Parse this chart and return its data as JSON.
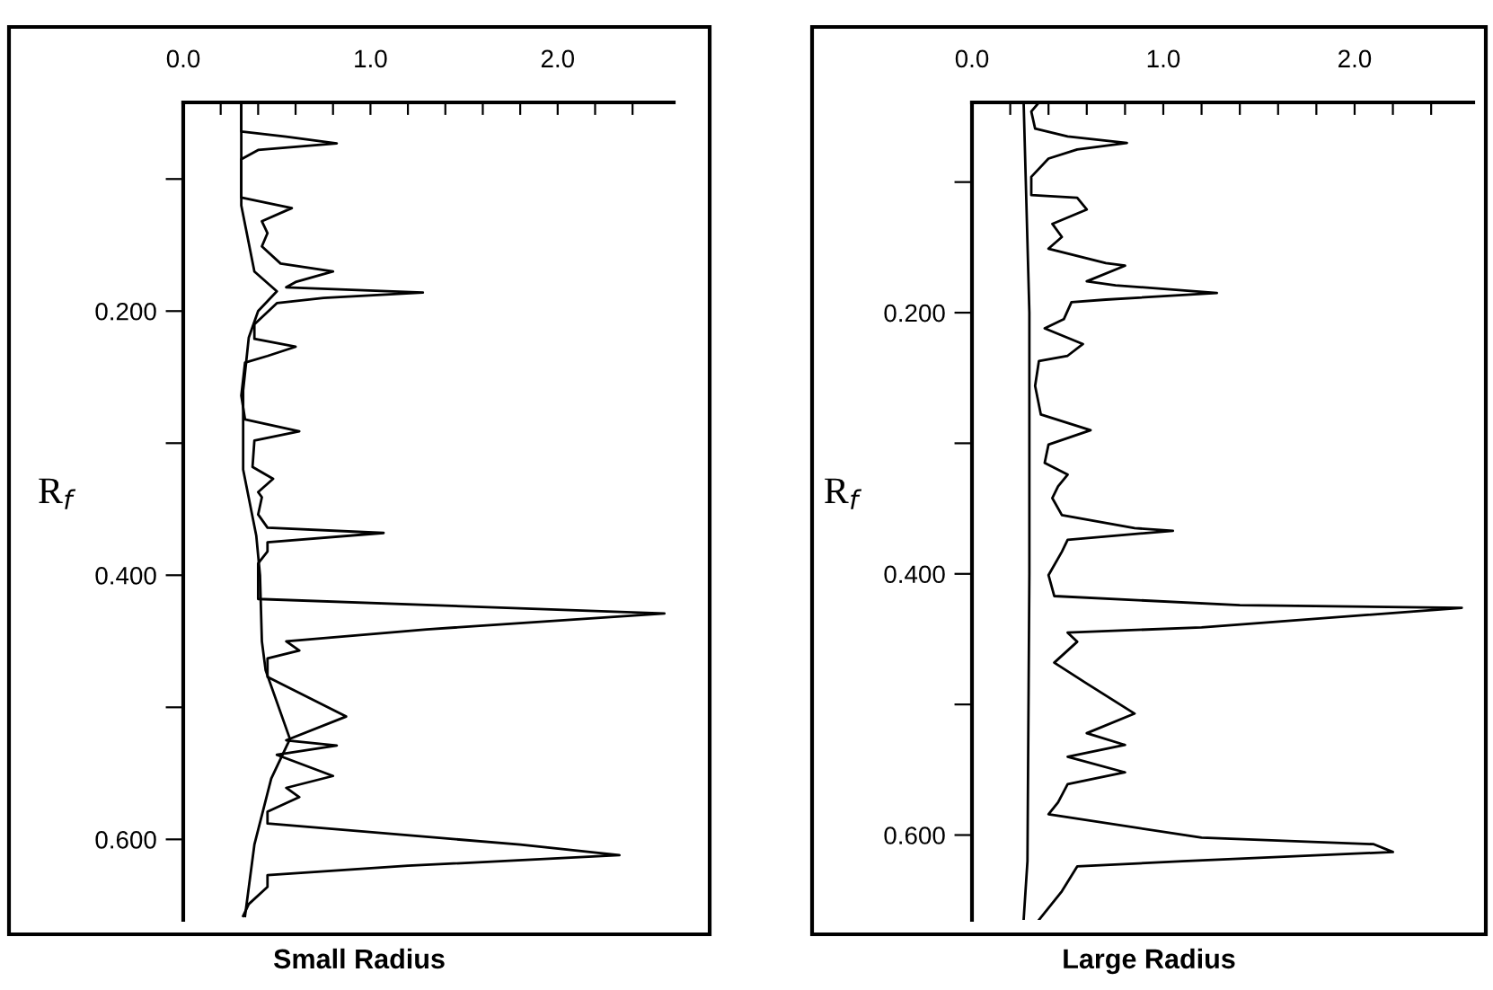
{
  "chart_data": [
    {
      "type": "line",
      "title": "Small Radius",
      "ylabel": "R$_{f}$",
      "orientation": "horizontal",
      "xlim": [
        0,
        2.62
      ],
      "ylim": [
        0.661,
        0.042
      ],
      "xticks": [
        {
          "value": 0.0,
          "label": "0.0"
        },
        {
          "value": 0.2,
          "label": null
        },
        {
          "value": 0.4,
          "label": null
        },
        {
          "value": 0.6,
          "label": null
        },
        {
          "value": 0.8,
          "label": null
        },
        {
          "value": 1.0,
          "label": "1.0"
        },
        {
          "value": 1.2,
          "label": null
        },
        {
          "value": 1.4,
          "label": null
        },
        {
          "value": 1.6,
          "label": null
        },
        {
          "value": 1.8,
          "label": null
        },
        {
          "value": 2.0,
          "label": "2.0"
        },
        {
          "value": 2.2,
          "label": null
        },
        {
          "value": 2.4,
          "label": null
        }
      ],
      "yticks": [
        {
          "value": 0.1,
          "label": null
        },
        {
          "value": 0.2,
          "label": "0.200"
        },
        {
          "value": 0.3,
          "label": null
        },
        {
          "value": 0.4,
          "label": "0.400"
        },
        {
          "value": 0.5,
          "label": null
        },
        {
          "value": 0.6,
          "label": "0.600"
        }
      ],
      "series": [
        {
          "color": "#000000",
          "x": [
            0.044,
            0.064,
            0.068,
            0.073,
            0.078,
            0.085,
            0.11,
            0.114,
            0.122,
            0.132,
            0.141,
            0.151,
            0.164,
            0.17,
            0.178,
            0.182,
            0.186,
            0.19,
            0.194,
            0.21,
            0.221,
            0.227,
            0.234,
            0.239,
            0.264,
            0.282,
            0.291,
            0.298,
            0.318,
            0.327,
            0.337,
            0.341,
            0.354,
            0.364,
            0.368,
            0.375,
            0.382,
            0.391,
            0.405,
            0.418,
            0.423,
            0.429,
            0.441,
            0.45,
            0.457,
            0.463,
            0.477,
            0.507,
            0.525,
            0.529,
            0.536,
            0.552,
            0.561,
            0.568,
            0.579,
            0.588,
            0.604,
            0.612,
            0.62,
            0.627,
            0.636,
            0.649,
            0.658
          ],
          "values": [
            0.31,
            0.31,
            0.55,
            0.82,
            0.4,
            0.31,
            0.31,
            0.31,
            0.58,
            0.42,
            0.45,
            0.42,
            0.52,
            0.8,
            0.6,
            0.55,
            1.28,
            0.75,
            0.5,
            0.38,
            0.38,
            0.6,
            0.45,
            0.33,
            0.31,
            0.33,
            0.62,
            0.38,
            0.37,
            0.48,
            0.4,
            0.42,
            0.4,
            0.45,
            1.07,
            0.45,
            0.45,
            0.4,
            0.4,
            0.4,
            1.4,
            2.57,
            1.3,
            0.55,
            0.62,
            0.45,
            0.45,
            0.87,
            0.55,
            0.82,
            0.5,
            0.8,
            0.55,
            0.62,
            0.45,
            0.45,
            1.8,
            2.33,
            1.2,
            0.45,
            0.45,
            0.35,
            0.32
          ]
        },
        {
          "color": "#000000",
          "x": [
            0.044,
            0.12,
            0.17,
            0.185,
            0.2,
            0.22,
            0.26,
            0.32,
            0.37,
            0.4,
            0.45,
            0.472,
            0.524,
            0.554,
            0.604,
            0.658
          ],
          "values": [
            0.31,
            0.31,
            0.38,
            0.5,
            0.4,
            0.35,
            0.32,
            0.32,
            0.39,
            0.41,
            0.42,
            0.44,
            0.57,
            0.47,
            0.38,
            0.33
          ]
        }
      ]
    },
    {
      "type": "line",
      "title": "Large Radius",
      "ylabel": "R$_{f}$",
      "orientation": "horizontal",
      "xlim": [
        0,
        2.62
      ],
      "ylim": [
        0.665,
        0.039
      ],
      "xticks": [
        {
          "value": 0.0,
          "label": "0.0"
        },
        {
          "value": 0.2,
          "label": null
        },
        {
          "value": 0.4,
          "label": null
        },
        {
          "value": 0.6,
          "label": null
        },
        {
          "value": 0.8,
          "label": null
        },
        {
          "value": 1.0,
          "label": "1.0"
        },
        {
          "value": 1.2,
          "label": null
        },
        {
          "value": 1.4,
          "label": null
        },
        {
          "value": 1.6,
          "label": null
        },
        {
          "value": 1.8,
          "label": null
        },
        {
          "value": 2.0,
          "label": "2.0"
        },
        {
          "value": 2.2,
          "label": null
        },
        {
          "value": 2.4,
          "label": null
        }
      ],
      "yticks": [
        {
          "value": 0.1,
          "label": null
        },
        {
          "value": 0.2,
          "label": "0.200"
        },
        {
          "value": 0.3,
          "label": null
        },
        {
          "value": 0.4,
          "label": "0.400"
        },
        {
          "value": 0.5,
          "label": null
        },
        {
          "value": 0.6,
          "label": "0.600"
        }
      ],
      "series": [
        {
          "color": "#000000",
          "x": [
            0.039,
            0.046,
            0.059,
            0.065,
            0.07,
            0.075,
            0.082,
            0.096,
            0.11,
            0.112,
            0.121,
            0.132,
            0.142,
            0.151,
            0.162,
            0.164,
            0.176,
            0.179,
            0.185,
            0.19,
            0.192,
            0.205,
            0.212,
            0.224,
            0.233,
            0.237,
            0.256,
            0.278,
            0.29,
            0.301,
            0.315,
            0.324,
            0.333,
            0.342,
            0.355,
            0.365,
            0.367,
            0.374,
            0.383,
            0.401,
            0.417,
            0.424,
            0.426,
            0.441,
            0.445,
            0.452,
            0.468,
            0.484,
            0.507,
            0.522,
            0.531,
            0.54,
            0.552,
            0.561,
            0.575,
            0.584,
            0.602,
            0.607,
            0.613,
            0.62,
            0.624,
            0.643,
            0.665
          ],
          "values": [
            0.35,
            0.31,
            0.33,
            0.5,
            0.81,
            0.55,
            0.4,
            0.31,
            0.31,
            0.55,
            0.6,
            0.42,
            0.47,
            0.4,
            0.7,
            0.8,
            0.6,
            0.75,
            1.28,
            0.7,
            0.52,
            0.48,
            0.38,
            0.58,
            0.5,
            0.35,
            0.33,
            0.36,
            0.62,
            0.4,
            0.38,
            0.5,
            0.45,
            0.42,
            0.47,
            0.85,
            1.05,
            0.5,
            0.47,
            0.4,
            0.43,
            1.4,
            2.56,
            1.2,
            0.5,
            0.55,
            0.43,
            0.6,
            0.85,
            0.6,
            0.8,
            0.5,
            0.8,
            0.5,
            0.45,
            0.4,
            1.2,
            2.1,
            2.2,
            1.1,
            0.55,
            0.47,
            0.35
          ]
        },
        {
          "color": "#000000",
          "x": [
            0.039,
            0.2,
            0.4,
            0.62,
            0.665
          ],
          "values": [
            0.27,
            0.3,
            0.3,
            0.29,
            0.27
          ]
        }
      ]
    }
  ]
}
